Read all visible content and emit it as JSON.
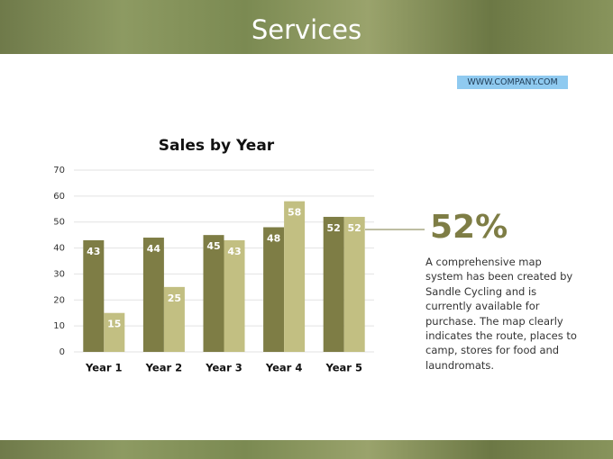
{
  "header": {
    "title": "Services"
  },
  "website": "WWW.COMPANY.COM",
  "chart_data": {
    "type": "bar",
    "title": "Sales by Year",
    "categories": [
      "Year 1",
      "Year 2",
      "Year 3",
      "Year 4",
      "Year 5"
    ],
    "series": [
      {
        "color": "#7e7d45",
        "values": [
          43,
          44,
          45,
          48,
          52
        ]
      },
      {
        "color": "#c2bf82",
        "values": [
          15,
          25,
          43,
          58,
          52
        ]
      }
    ],
    "ylim": [
      0,
      70
    ],
    "yticks": [
      0,
      10,
      20,
      30,
      40,
      50,
      60,
      70
    ],
    "grid": true
  },
  "callout": {
    "figure": "52%",
    "text": "A comprehensive map system has been created by Sandle Cycling and is currently available for purchase. The map clearly indicates the route, places to camp, stores for food and laundromats."
  }
}
